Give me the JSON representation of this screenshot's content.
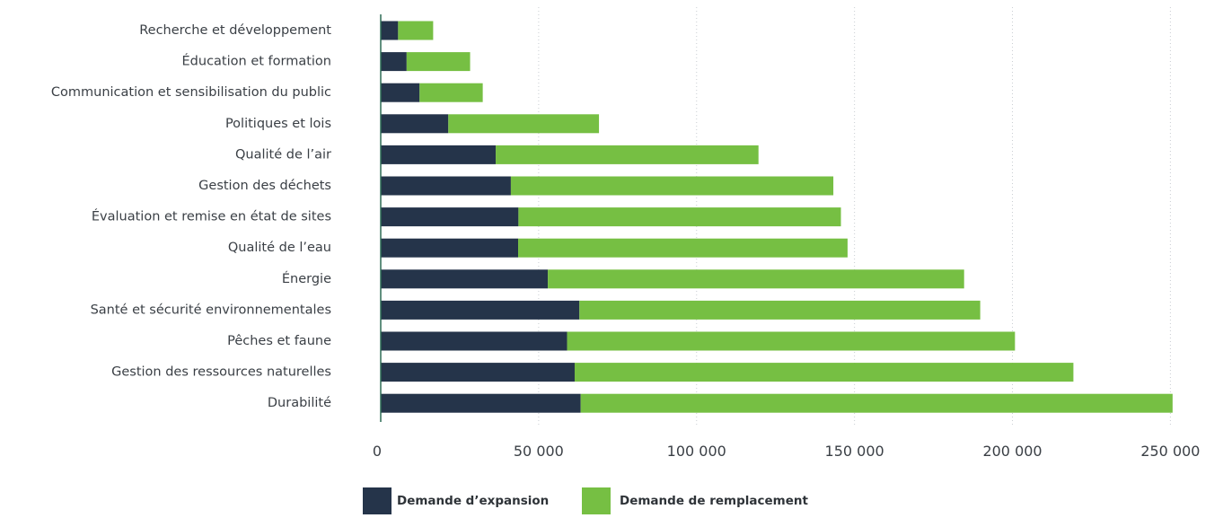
{
  "chart_data": {
    "type": "bar",
    "orientation": "horizontal",
    "stacked": true,
    "categories": [
      "Recherche et développement",
      "Éducation et formation",
      "Communication et sensibilisation du public",
      "Politiques et lois",
      "Qualité de l’air",
      "Gestion des déchets",
      "Évaluation et remise en état de sites",
      "Qualité de l’eau",
      "Énergie",
      "Santé et sécurité environnementales",
      "Pêches et faune",
      "Gestion des ressources naturelles",
      "Durabilité"
    ],
    "series": [
      {
        "name": "Demande d’expansion",
        "color": "#25344a",
        "values": [
          5500,
          8200,
          12300,
          21400,
          36400,
          41200,
          43600,
          43500,
          52900,
          62900,
          59000,
          61400,
          63300
        ]
      },
      {
        "name": "Demande de remplacement",
        "color": "#76bf43",
        "values": [
          11100,
          20100,
          20000,
          47700,
          83200,
          102100,
          102100,
          104300,
          131800,
          126900,
          141800,
          157900,
          187400
        ]
      }
    ],
    "xlim": [
      0,
      255000
    ],
    "xticks": [
      0,
      50000,
      100000,
      150000,
      200000,
      250000
    ],
    "xtick_labels": [
      "0",
      "50 000",
      "100 000",
      "150 000",
      "200 000",
      "250 000"
    ],
    "grid": true,
    "legend_position": "bottom"
  }
}
